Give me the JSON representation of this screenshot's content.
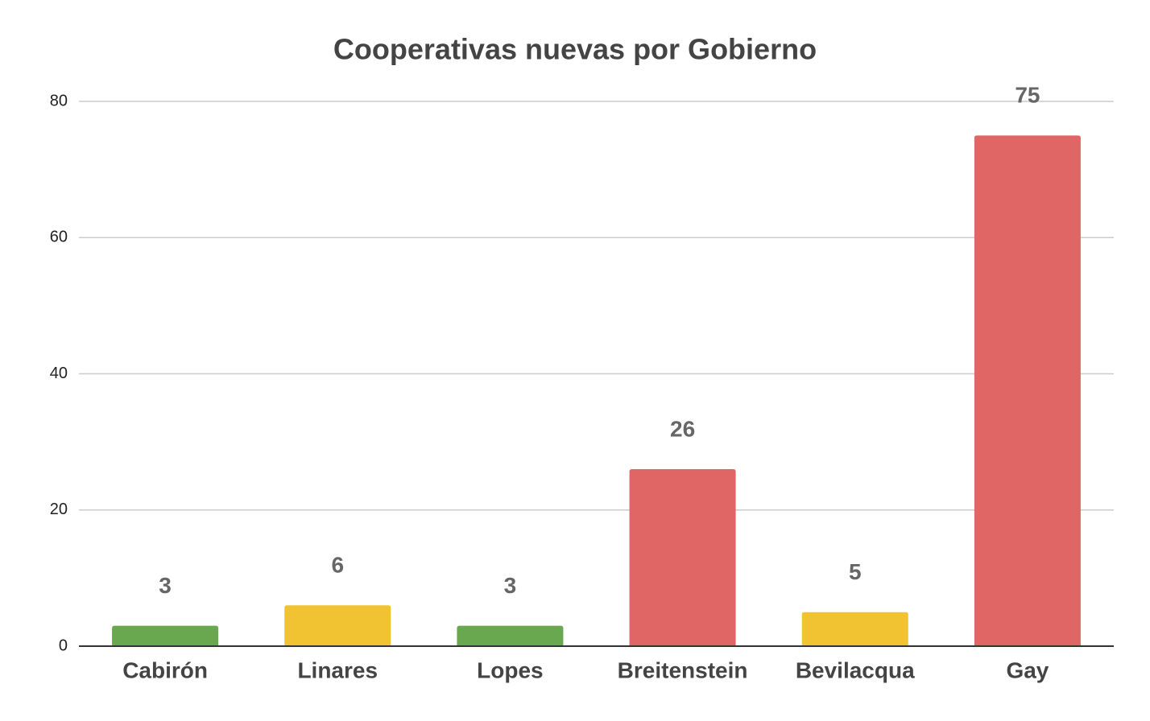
{
  "chart_data": {
    "type": "bar",
    "title": "Cooperativas nuevas por Gobierno",
    "categories": [
      "Cabirón",
      "Linares",
      "Lopes",
      "Breitenstein",
      "Bevilacqua",
      "Gay"
    ],
    "values": [
      3,
      6,
      3,
      26,
      5,
      75
    ],
    "colors": [
      "#6aa84f",
      "#f1c232",
      "#6aa84f",
      "#e06666",
      "#f1c232",
      "#e06666"
    ],
    "ylim": [
      0,
      80
    ],
    "yticks": [
      0,
      20,
      40,
      60,
      80
    ],
    "grid": true
  }
}
